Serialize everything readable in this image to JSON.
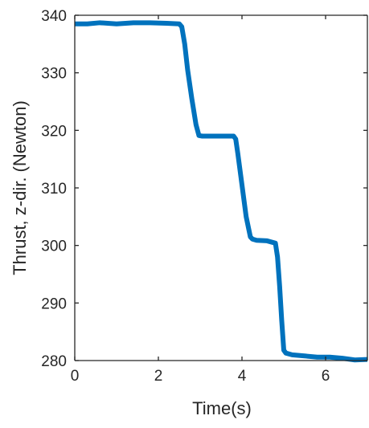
{
  "chart_data": {
    "type": "line",
    "title": "",
    "xlabel": "Time(s)",
    "ylabel": "Thrust, z-dir. (Newton)",
    "xlim": [
      0,
      7
    ],
    "ylim": [
      280,
      340
    ],
    "xticks": [
      0,
      2,
      4,
      6
    ],
    "yticks": [
      280,
      290,
      300,
      310,
      320,
      330,
      340
    ],
    "xtick_labels": [
      "0",
      "2",
      "4",
      "6"
    ],
    "ytick_labels": [
      "280",
      "290",
      "300",
      "310",
      "320",
      "330",
      "340"
    ],
    "grid": false,
    "legend": "none",
    "series": [
      {
        "color": "#0072BD",
        "x": [
          0,
          0.3,
          0.6,
          1.0,
          1.4,
          1.8,
          2.2,
          2.5,
          2.56,
          2.63,
          2.7,
          2.8,
          2.9,
          2.97,
          3.05,
          3.3,
          3.6,
          3.8,
          3.85,
          3.9,
          4.0,
          4.1,
          4.2,
          4.25,
          4.35,
          4.6,
          4.8,
          4.85,
          4.9,
          4.95,
          5.0,
          5.05,
          5.2,
          5.5,
          5.8,
          6.1,
          6.4,
          6.7,
          7.0
        ],
        "y": [
          338.5,
          338.5,
          338.7,
          338.5,
          338.7,
          338.7,
          338.6,
          338.5,
          338.0,
          335.0,
          330.5,
          325.5,
          321.0,
          319.1,
          319.0,
          319.0,
          319.0,
          319.0,
          318.5,
          316.0,
          310.5,
          305.0,
          301.5,
          301.1,
          300.9,
          300.8,
          300.4,
          298.0,
          293.0,
          287.0,
          281.8,
          281.3,
          281.0,
          280.8,
          280.6,
          280.6,
          280.4,
          280.1,
          280.2
        ]
      }
    ]
  }
}
